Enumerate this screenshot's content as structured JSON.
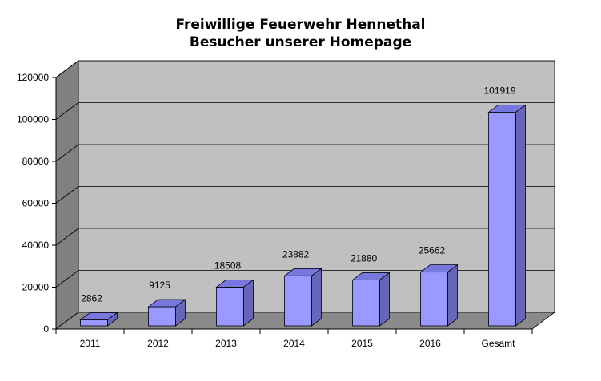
{
  "chart_data": {
    "type": "bar",
    "title": "Freiwillige Feuerwehr Hennethal",
    "subtitle": "Besucher unserer Homepage",
    "categories": [
      "2011",
      "2012",
      "2013",
      "2014",
      "2015",
      "2016",
      "Gesamt"
    ],
    "values": [
      2862,
      9125,
      18508,
      23882,
      21880,
      25662,
      101919
    ],
    "data_labels": [
      "2862",
      "9125",
      "18508",
      "23882",
      "21880",
      "25662",
      "101919"
    ],
    "ylim": [
      0,
      120000
    ],
    "yticks": [
      "0",
      "20000",
      "40000",
      "60000",
      "80000",
      "100000",
      "120000"
    ],
    "grid": true,
    "legend": "none",
    "colors": {
      "bar_front": "#9999FF",
      "bar_top": "#7777DD",
      "bar_side": "#6666BB",
      "plot_back": "#C0C0C0",
      "plot_wall": "#808080",
      "plot_floor": "#8A8A8A"
    }
  }
}
